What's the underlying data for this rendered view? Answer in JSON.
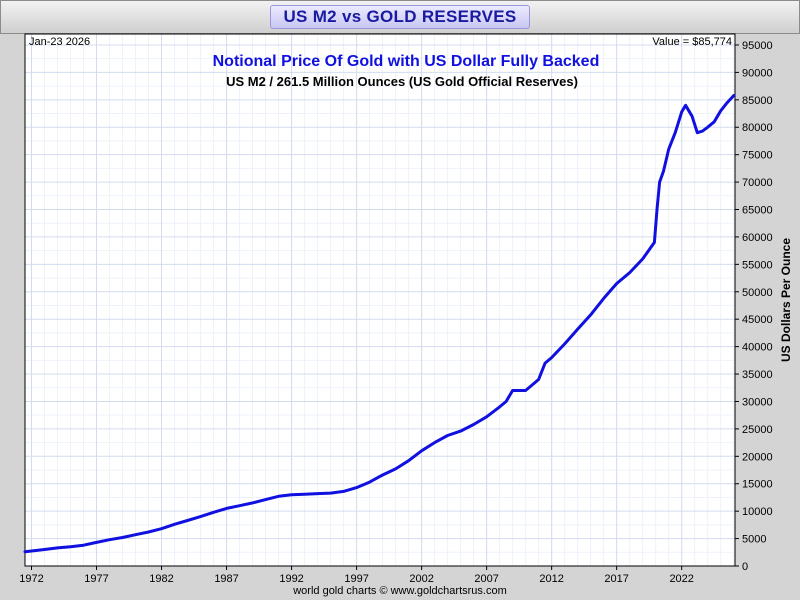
{
  "header": {
    "title": "US M2 vs GOLD RESERVES"
  },
  "chart_data": {
    "type": "line",
    "title": "Notional Price Of Gold with US Dollar Fully Backed",
    "subtitle": "US M2 / 261.5 Million Ounces (US Gold Official Reserves)",
    "date_label": "Jan-23  2026",
    "value_label": "Value = $85,774",
    "ylabel": "US Dollars Per Ounce",
    "source": "world gold charts © www.goldchartsrus.com",
    "xlim": [
      1971.5,
      2026.1
    ],
    "ylim": [
      0,
      97000
    ],
    "x_ticks": [
      1972,
      1977,
      1982,
      1987,
      1992,
      1997,
      2002,
      2007,
      2012,
      2017,
      2022
    ],
    "x_tick_labels": [
      "1972",
      "1977",
      "1982",
      "1987",
      "1992",
      "1997",
      "2002",
      "2007",
      "2012",
      "2017",
      "2022"
    ],
    "y_ticks": [
      0,
      5000,
      10000,
      15000,
      20000,
      25000,
      30000,
      35000,
      40000,
      45000,
      50000,
      55000,
      60000,
      65000,
      70000,
      75000,
      80000,
      85000,
      90000,
      95000
    ],
    "y_tick_labels": [
      "0",
      "5000",
      "10000",
      "15000",
      "20000",
      "25000",
      "30000",
      "35000",
      "40000",
      "45000",
      "50000",
      "55000",
      "60000",
      "65000",
      "70000",
      "75000",
      "80000",
      "85000",
      "90000",
      "95000"
    ],
    "series": [
      {
        "name": "Notional Price Of Gold",
        "color": "#1010e0",
        "x": [
          1971.5,
          1973,
          1974,
          1975,
          1976,
          1977,
          1978,
          1979,
          1980,
          1981,
          1982,
          1983,
          1984,
          1985,
          1986,
          1987,
          1988,
          1989,
          1990,
          1991,
          1992,
          1993,
          1994,
          1995,
          1996,
          1997,
          1998,
          1999,
          2000,
          2001,
          2002,
          2003,
          2004,
          2005,
          2006,
          2007,
          2008,
          2008.5,
          2009,
          2010,
          2011,
          2011.5,
          2012,
          2013,
          2014,
          2015,
          2016,
          2017,
          2018,
          2019,
          2019.9,
          2020.1,
          2020.3,
          2020.6,
          2021,
          2021.5,
          2022,
          2022.3,
          2022.8,
          2023.2,
          2023.6,
          2024,
          2024.5,
          2025,
          2025.5,
          2026
        ],
        "y": [
          2600,
          3000,
          3300,
          3500,
          3800,
          4300,
          4800,
          5200,
          5700,
          6200,
          6800,
          7600,
          8300,
          9000,
          9800,
          10500,
          11000,
          11500,
          12100,
          12700,
          13000,
          13100,
          13200,
          13300,
          13600,
          14300,
          15300,
          16600,
          17700,
          19200,
          21000,
          22500,
          23800,
          24600,
          25800,
          27200,
          29000,
          30000,
          32000,
          32000,
          34000,
          37000,
          38000,
          40500,
          43200,
          45800,
          48800,
          51500,
          53500,
          56000,
          59000,
          65000,
          70000,
          72000,
          76000,
          79000,
          82800,
          84000,
          82000,
          79000,
          79300,
          80000,
          81000,
          83000,
          84500,
          85774
        ]
      }
    ]
  }
}
